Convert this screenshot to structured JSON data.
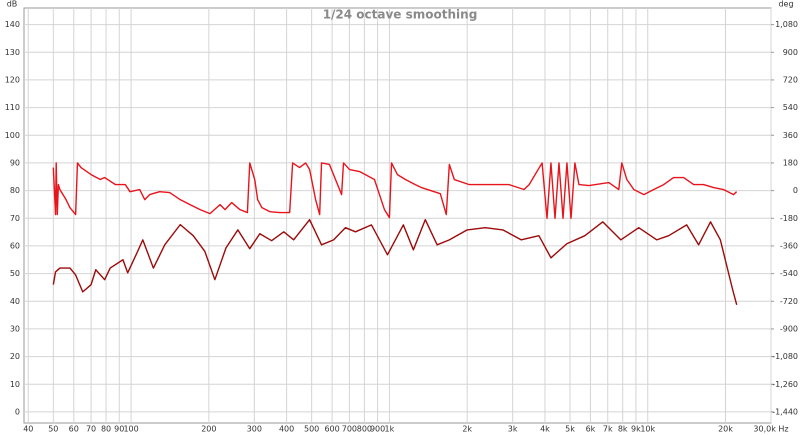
{
  "chart_data": {
    "type": "line",
    "title": "1/24 octave smoothing",
    "y_label": "dB",
    "y2_label": "deg",
    "log_x": true,
    "grid": true,
    "xlim": [
      38.5,
      30000
    ],
    "ylim": [
      -4,
      146
    ],
    "y2lim": [
      -1512,
      1188
    ],
    "xticks": [
      40,
      50,
      60,
      70,
      80,
      90,
      100,
      200,
      300,
      400,
      500,
      600,
      700,
      800,
      900,
      {
        "value": 1000,
        "label": "1k"
      },
      {
        "value": 2000,
        "label": "2k"
      },
      {
        "value": 3000,
        "label": "3k"
      },
      {
        "value": 4000,
        "label": "4k"
      },
      {
        "value": 5000,
        "label": "5k"
      },
      {
        "value": 6000,
        "label": "6k"
      },
      {
        "value": 7000,
        "label": "7k"
      },
      {
        "value": 8000,
        "label": "8k"
      },
      {
        "value": 9000,
        "label": "9k"
      },
      {
        "value": 10000,
        "label": "10k"
      },
      {
        "value": 20000,
        "label": "20k"
      },
      {
        "value": 30000,
        "label": "30,0k Hz"
      }
    ],
    "yticks": [
      0,
      10,
      20,
      30,
      40,
      50,
      60,
      70,
      80,
      90,
      100,
      110,
      120,
      130,
      140
    ],
    "y2ticks": [
      {
        "value": -1440,
        "label": "-1,440"
      },
      {
        "value": -1260,
        "label": "-1,260"
      },
      {
        "value": -1080,
        "label": "-1,080"
      },
      -900,
      -720,
      -540,
      -360,
      -180,
      0,
      180,
      360,
      540,
      720,
      900,
      {
        "value": 1080,
        "label": "1,080"
      }
    ],
    "series": [
      {
        "color": "#9c0a0a",
        "x": [
          50,
          51,
          53,
          58,
          61,
          65,
          70,
          73,
          79,
          83,
          93,
          97,
          106,
          111,
          122,
          135,
          155,
          174,
          193,
          211,
          233,
          259,
          288,
          315,
          350,
          390,
          426,
          491,
          546,
          608,
          676,
          739,
          852,
          983,
          1132,
          1238,
          1377,
          1530,
          1706,
          2000,
          2350,
          2750,
          3240,
          3790,
          4220,
          4860,
          5710,
          6700,
          7870,
          9230,
          10830,
          12050,
          14150,
          15740,
          17500,
          19100,
          21300,
          22100
        ],
        "values": [
          46,
          50.6,
          52,
          52,
          49.5,
          43.4,
          46,
          51.4,
          47.8,
          52,
          55,
          50.3,
          58,
          62.2,
          52,
          60.4,
          67.7,
          63.7,
          58,
          47.8,
          59.3,
          65.8,
          59,
          64.4,
          61.9,
          65.1,
          62.2,
          69.5,
          60.4,
          62.2,
          66.6,
          65.1,
          67.6,
          56.8,
          67.6,
          58.6,
          69.5,
          60.4,
          62.2,
          65.8,
          66.6,
          65.8,
          62.2,
          63.7,
          55.7,
          60.8,
          63.7,
          68.7,
          62.2,
          66.6,
          62.2,
          63.7,
          67.6,
          60.4,
          68.7,
          62.2,
          44.3,
          38.7
        ]
      },
      {
        "color": "#e8141c",
        "axis": "y2",
        "x": [
          50,
          51,
          51.3,
          51.8,
          52.3,
          53,
          56,
          58,
          61,
          62,
          64,
          70,
          76,
          79,
          87,
          95,
          99,
          108,
          113,
          118,
          129,
          141,
          155,
          169,
          185,
          202,
          221,
          231,
          245,
          264,
          282,
          288,
          301,
          309,
          321,
          344,
          376,
          411,
          422,
          449,
          474,
          491,
          518,
          537,
          546,
          586,
          630,
          653,
          664,
          701,
          766,
          875,
          957,
          1000,
          1019,
          1074,
          1153,
          1259,
          1330,
          1574,
          1660,
          1706,
          1783,
          2037,
          2432,
          2904,
          3319,
          3475,
          3899,
          4074,
          4220,
          4375,
          4534,
          4699,
          4866,
          5047,
          5224,
          5416,
          5920,
          7068,
          7724,
          7937,
          8299,
          8831,
          9660,
          10550,
          11530,
          12590,
          13770,
          15060,
          16440,
          17990,
          19640,
          21480,
          22080
        ],
        "values": [
          150,
          -156,
          180,
          -156,
          39,
          7,
          -59,
          -111,
          -156,
          180,
          150,
          104,
          72,
          85,
          39,
          39,
          -7,
          7,
          -59,
          -26,
          -7,
          -13,
          -59,
          -91,
          -124,
          -150,
          -91,
          -124,
          -78,
          -124,
          -143,
          180,
          72,
          -59,
          -111,
          -137,
          -143,
          -143,
          180,
          150,
          180,
          137,
          -59,
          -156,
          180,
          170,
          39,
          -26,
          180,
          137,
          124,
          72,
          -124,
          -176,
          180,
          104,
          72,
          39,
          20,
          -20,
          -156,
          170,
          72,
          39,
          39,
          39,
          7,
          39,
          180,
          -180,
          180,
          -180,
          180,
          -180,
          180,
          -180,
          180,
          39,
          33,
          52,
          7,
          180,
          72,
          7,
          -26,
          7,
          39,
          85,
          85,
          39,
          39,
          20,
          7,
          -26,
          -7
        ]
      }
    ]
  }
}
